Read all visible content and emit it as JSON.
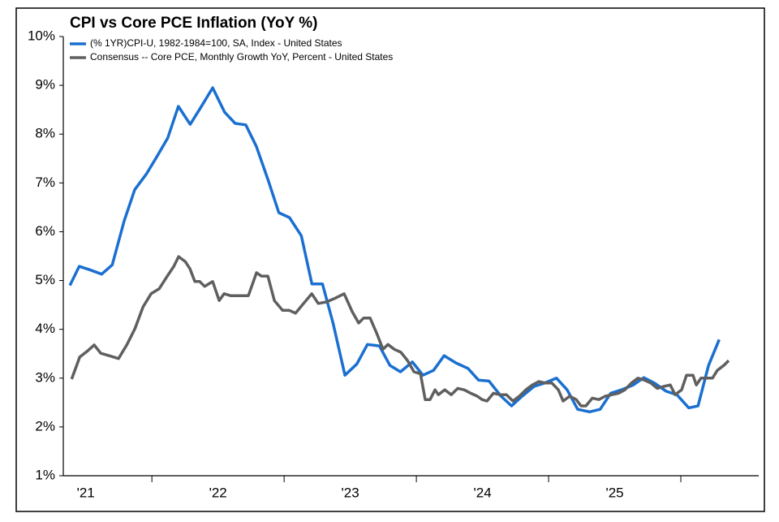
{
  "chart_data": {
    "type": "line",
    "title": "CPI vs Core PCE Inflation (YoY %)",
    "xlim": [
      2021.33,
      2026.589
    ],
    "ylim": [
      1,
      10
    ],
    "yticks": [
      {
        "value": 1,
        "label": "1%"
      },
      {
        "value": 2,
        "label": "2%"
      },
      {
        "value": 3,
        "label": "3%"
      },
      {
        "value": 4,
        "label": "4%"
      },
      {
        "value": 5,
        "label": "5%"
      },
      {
        "value": 6,
        "label": "6%"
      },
      {
        "value": 7,
        "label": "7%"
      },
      {
        "value": 8,
        "label": "8%"
      },
      {
        "value": 9,
        "label": "9%"
      },
      {
        "value": 10,
        "label": "10%"
      }
    ],
    "xticks": [
      {
        "value": 2021.5,
        "label": "'21"
      },
      {
        "value": 2022.5,
        "label": "'22"
      },
      {
        "value": 2023.5,
        "label": "'23"
      },
      {
        "value": 2024.5,
        "label": "'24"
      },
      {
        "value": 2025.5,
        "label": "'25"
      }
    ],
    "grid": false,
    "legend": "upper left",
    "series": [
      {
        "name": "(% 1YR)CPI-U,  1982-1984=100, SA, Index - United States",
        "color": "#1a6fd0",
        "x": [
          2021.38,
          2021.45,
          2021.53,
          2021.62,
          2021.7,
          2021.79,
          2021.87,
          2021.96,
          2022.04,
          2022.12,
          2022.2,
          2022.29,
          2022.37,
          2022.46,
          2022.55,
          2022.63,
          2022.71,
          2022.79,
          2022.88,
          2022.96,
          2023.04,
          2023.13,
          2023.21,
          2023.29,
          2023.37,
          2023.46,
          2023.55,
          2023.63,
          2023.72,
          2023.8,
          2023.88,
          2023.97,
          2024.05,
          2024.13,
          2024.21,
          2024.3,
          2024.39,
          2024.47,
          2024.55,
          2024.64,
          2024.72,
          2024.8,
          2024.89,
          2024.97,
          2025.06,
          2025.14,
          2025.22,
          2025.31,
          2025.39,
          2025.47,
          2025.55,
          2025.64,
          2025.72,
          2025.8,
          2025.89,
          2025.97,
          2026.06,
          2026.13,
          2026.21,
          2026.29
        ],
        "values": [
          4.9,
          5.29,
          5.22,
          5.13,
          5.32,
          6.22,
          6.86,
          7.19,
          7.55,
          7.92,
          8.57,
          8.2,
          8.55,
          8.95,
          8.45,
          8.22,
          8.19,
          7.75,
          7.05,
          6.39,
          6.29,
          5.92,
          4.93,
          4.93,
          4.13,
          3.06,
          3.29,
          3.69,
          3.66,
          3.26,
          3.13,
          3.33,
          3.06,
          3.16,
          3.46,
          3.31,
          3.2,
          2.96,
          2.94,
          2.63,
          2.43,
          2.63,
          2.83,
          2.9,
          3.0,
          2.76,
          2.36,
          2.31,
          2.36,
          2.69,
          2.76,
          2.86,
          3.01,
          2.9,
          2.73,
          2.66,
          2.39,
          2.43,
          3.26,
          3.79
        ]
      },
      {
        "name": "Consensus -- Core PCE, Monthly Growth YoY, Percent - United States",
        "color": "#5f5f5f",
        "x": [
          2021.393,
          2021.454,
          2021.515,
          2021.564,
          2021.613,
          2021.675,
          2021.748,
          2021.81,
          2021.871,
          2021.933,
          2021.994,
          2022.055,
          2022.117,
          2022.166,
          2022.202,
          2022.252,
          2022.288,
          2022.325,
          2022.362,
          2022.399,
          2022.46,
          2022.509,
          2022.546,
          2022.595,
          2022.656,
          2022.73,
          2022.791,
          2022.828,
          2022.877,
          2022.926,
          2022.988,
          2023.037,
          2023.086,
          2023.135,
          2023.209,
          2023.258,
          2023.319,
          2023.38,
          2023.454,
          2023.515,
          2023.564,
          2023.601,
          2023.65,
          2023.699,
          2023.748,
          2023.785,
          2023.834,
          2023.883,
          2023.933,
          2023.982,
          2024.031,
          2024.067,
          2024.104,
          2024.141,
          2024.166,
          2024.215,
          2024.264,
          2024.313,
          2024.362,
          2024.411,
          2024.46,
          2024.497,
          2024.534,
          2024.583,
          2024.632,
          2024.681,
          2024.73,
          2024.779,
          2024.828,
          2024.877,
          2024.926,
          2024.975,
          2025.025,
          2025.074,
          2025.11,
          2025.16,
          2025.209,
          2025.245,
          2025.282,
          2025.331,
          2025.38,
          2025.429,
          2025.479,
          2025.528,
          2025.577,
          2025.626,
          2025.675,
          2025.724,
          2025.773,
          2025.822,
          2025.871,
          2025.92,
          2025.957,
          2026.006,
          2026.043,
          2026.092,
          2026.117,
          2026.153,
          2026.202,
          2026.239,
          2026.276,
          2026.325,
          2026.362
        ],
        "values": [
          2.98,
          3.43,
          3.56,
          3.68,
          3.51,
          3.46,
          3.4,
          3.68,
          4.01,
          4.46,
          4.73,
          4.83,
          5.09,
          5.29,
          5.49,
          5.39,
          5.24,
          4.98,
          4.98,
          4.88,
          4.98,
          4.59,
          4.73,
          4.69,
          4.69,
          4.69,
          5.16,
          5.09,
          5.09,
          4.59,
          4.39,
          4.39,
          4.33,
          4.49,
          4.73,
          4.53,
          4.56,
          4.63,
          4.73,
          4.36,
          4.13,
          4.23,
          4.23,
          3.93,
          3.59,
          3.69,
          3.59,
          3.53,
          3.36,
          3.13,
          3.09,
          2.56,
          2.56,
          2.76,
          2.66,
          2.76,
          2.66,
          2.79,
          2.76,
          2.69,
          2.63,
          2.56,
          2.53,
          2.69,
          2.66,
          2.66,
          2.53,
          2.63,
          2.76,
          2.86,
          2.93,
          2.9,
          2.9,
          2.76,
          2.53,
          2.63,
          2.56,
          2.43,
          2.43,
          2.59,
          2.56,
          2.63,
          2.66,
          2.69,
          2.76,
          2.9,
          3.0,
          2.96,
          2.9,
          2.79,
          2.83,
          2.86,
          2.66,
          2.76,
          3.06,
          3.06,
          2.86,
          3.0,
          3.0,
          3.0,
          3.16,
          3.26,
          3.36
        ]
      }
    ]
  }
}
